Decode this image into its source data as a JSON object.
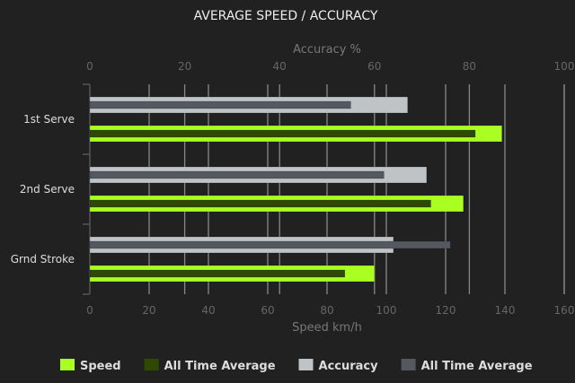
{
  "chart_data": {
    "type": "bar",
    "orientation": "horizontal",
    "title": "AVERAGE SPEED / ACCURACY",
    "xlabel": "Speed km/h",
    "x2label": "Accuracy %",
    "categories": [
      "1st Serve",
      "2nd Serve",
      "Grnd Stroke"
    ],
    "xlim": [
      0,
      160
    ],
    "x2lim": [
      0,
      100
    ],
    "xticks": [
      "0",
      "20",
      "40",
      "60",
      "80",
      "100",
      "120",
      "140",
      "160"
    ],
    "x2ticks": [
      "0",
      "20",
      "40",
      "60",
      "80",
      "100"
    ],
    "grid": true,
    "legend_placement": "bottom",
    "series": [
      {
        "name": "Speed",
        "axis": "speed",
        "color": "#aaff22",
        "values": [
          139,
          126,
          96
        ]
      },
      {
        "name": "All Time Average",
        "axis": "speed",
        "color": "#2f4a00",
        "values": [
          130,
          115,
          86
        ]
      },
      {
        "name": "Accuracy",
        "axis": "accuracy",
        "color": "#bfc3c6",
        "values": [
          67,
          71,
          64
        ]
      },
      {
        "name": "All Time Average",
        "axis": "accuracy",
        "color": "#545860",
        "values": [
          55,
          62,
          76
        ]
      }
    ]
  }
}
